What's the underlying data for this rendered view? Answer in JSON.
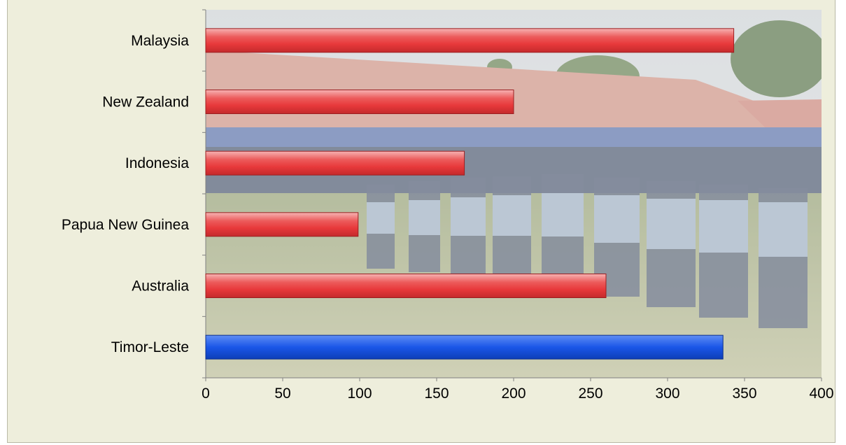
{
  "chart_data": {
    "type": "bar",
    "orientation": "horizontal",
    "categories": [
      "Malaysia",
      "New Zealand",
      "Indonesia",
      "Papua New Guinea",
      "Australia",
      "Timor-Leste"
    ],
    "values": [
      343,
      200,
      168,
      99,
      260,
      336
    ],
    "bar_colors": [
      "#e8393b",
      "#e8393b",
      "#e8393b",
      "#e8393b",
      "#e8393b",
      "#1a56e8"
    ],
    "xlim": [
      0,
      400
    ],
    "xticks": [
      "0",
      "50",
      "100",
      "150",
      "200",
      "250",
      "300",
      "350",
      "400"
    ],
    "grid": false,
    "legend": "none",
    "background": "photo of uniformed officers marching in a parade"
  }
}
